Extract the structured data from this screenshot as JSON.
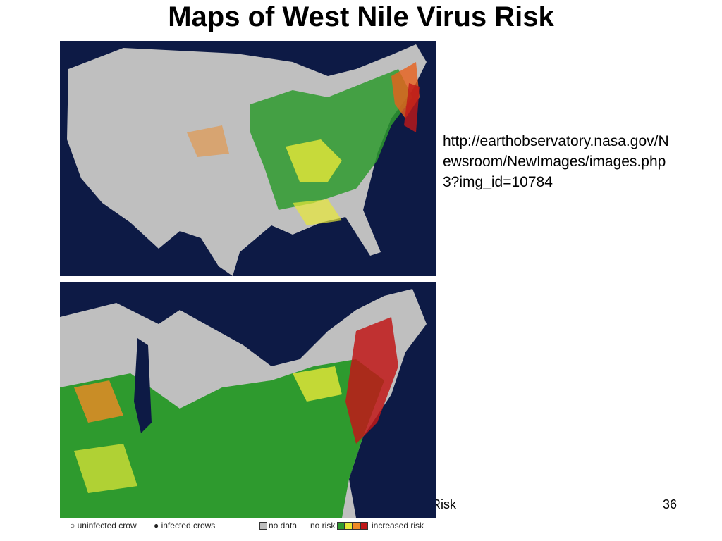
{
  "header": {
    "title": "Maps of West Nile Virus Risk"
  },
  "caption": {
    "url": "http://earthobservatory.nasa.gov/Newsroom/NewImages/images.php3?img_id=10784"
  },
  "legend": {
    "items": [
      "uninfected crow",
      "infected crows",
      "no data",
      "no risk",
      "increased risk"
    ]
  },
  "footer": {
    "text": "Risk",
    "page": "36"
  }
}
